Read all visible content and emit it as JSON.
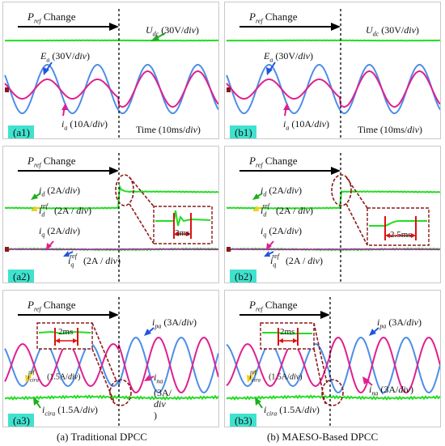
{
  "panels": {
    "a1": {
      "tag": "(a1)",
      "pref_change": "P",
      "pref_sub": "ref",
      "change_word": "Change",
      "udc_label": "U",
      "udc_sub": "dc",
      "udc_scale": "(30V/",
      "div": "div",
      "ea_label": "E",
      "ea_sub": "a",
      "ea_scale": "(30V/",
      "ia_label": "i",
      "ia_sub": "a",
      "ia_scale": "(10A/",
      "time_label": "Time (10ms/"
    },
    "b1": {
      "tag": "(b1)",
      "pref_change": "P",
      "pref_sub": "ref",
      "change_word": "Change",
      "udc_label": "U",
      "udc_sub": "dc",
      "udc_scale": "(30V/",
      "div": "div",
      "ea_label": "E",
      "ea_sub": "a",
      "ea_scale": "(30V/",
      "ia_label": "i",
      "ia_sub": "a",
      "ia_scale": "(10A/",
      "time_label": "Time (10ms/"
    },
    "a2": {
      "tag": "(a2)",
      "pref_change": "P",
      "pref_sub": "ref",
      "change_word": "Change",
      "div": "div",
      "id_label": "i",
      "id_sub": "d",
      "id_scale": "(2A/",
      "idref_label": "i",
      "idref_sub": "d",
      "idref_sup": "ref",
      "idref_scale": "(2A / ",
      "iq_label": "i",
      "iq_sub": "q",
      "iq_scale": "(2A/",
      "iqref_label": "i",
      "iqref_sub": "q",
      "iqref_sup": "ref",
      "iqref_scale": "(2A / ",
      "zoom_time": "3ms"
    },
    "b2": {
      "tag": "(b2)",
      "pref_change": "P",
      "pref_sub": "ref",
      "change_word": "Change",
      "div": "div",
      "id_label": "i",
      "id_sub": "d",
      "id_scale": "(2A/",
      "idref_label": "i",
      "idref_sub": "d",
      "idref_sup": "ref",
      "idref_scale": "(2A / ",
      "iq_label": "i",
      "iq_sub": "q",
      "iq_scale": "(2A/",
      "iqref_label": "i",
      "iqref_sub": "q",
      "iqref_sup": "ref",
      "iqref_scale": "(2A / ",
      "zoom_time": "2.5ms"
    },
    "a3": {
      "tag": "(a3)",
      "pref_change": "P",
      "pref_sub": "ref",
      "change_word": "Change",
      "div": "div",
      "ipa_label": "i",
      "ipa_sub": "pa",
      "ipa_scale": "(3A/",
      "ina_label": "i",
      "ina_sub": "na",
      "ina_scale": "(3A/",
      "ina_close": ")",
      "icira_ref_label": "i",
      "icira_ref_sub": "cira",
      "icira_ref_sup": "ref",
      "icira_ref_scale": "(1.5A/",
      "icira_label": "i",
      "icira_sub": "cira",
      "icira_scale": "(1.5A/",
      "zoom_time": "2ms"
    },
    "b3": {
      "tag": "(b3)",
      "pref_change": "P",
      "pref_sub": "ref",
      "change_word": "Change",
      "div": "div",
      "ipa_label": "i",
      "ipa_sub": "pa",
      "ipa_scale": "(3A/",
      "ina_label": "i",
      "ina_sub": "na",
      "ina_scale": "(3A/",
      "icira_ref_label": "i",
      "icira_ref_sub": "cira",
      "icira_ref_sup": "ref",
      "icira_ref_scale": "(1.5A/",
      "icira_label": "i",
      "icira_sub": "cira",
      "icira_scale": "(1.5A/",
      "zoom_time": "2ms"
    }
  },
  "captions": {
    "a": "(a) Traditional DPCC",
    "b": "(b) MAESO-Based DPCC"
  },
  "colors": {
    "green": "#22dd22",
    "blue": "#4d8ee8",
    "magenta": "#e0208f",
    "tag": "#3fe2cf",
    "oval": "#8b1a1a",
    "arrow_blue": "#2255dd",
    "arrow_green": "#1fae1f",
    "arrow_magenta": "#e0208f",
    "arrow_yellow": "#f0d020"
  }
}
